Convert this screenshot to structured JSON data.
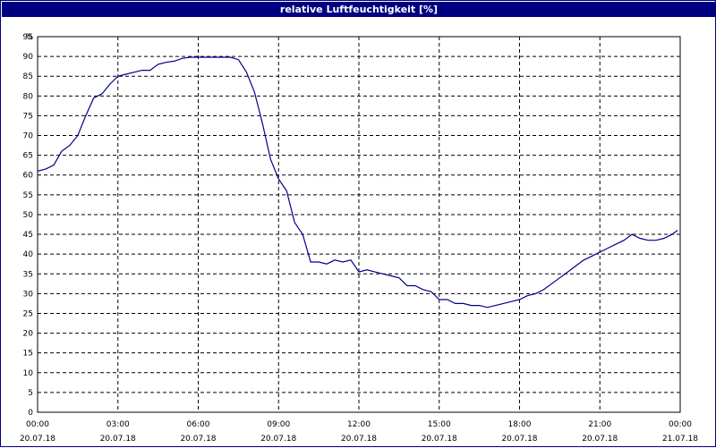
{
  "colors": {
    "title_bar": "#000080",
    "title_text": "#ffffff",
    "line": "#00008b",
    "grid": "#000000"
  },
  "chart_data": {
    "type": "line",
    "title": "relative Luftfeuchtigkeit [%]",
    "ylabel": "%",
    "xlabel": "",
    "ylim": [
      0,
      95
    ],
    "y_ticks": [
      0,
      5,
      10,
      15,
      20,
      25,
      30,
      35,
      40,
      45,
      50,
      55,
      60,
      65,
      70,
      75,
      80,
      85,
      90,
      95
    ],
    "xlim_hours": [
      0,
      24
    ],
    "x_ticks": [
      {
        "time": "00:00",
        "date": "20.07.18",
        "hour": 0
      },
      {
        "time": "03:00",
        "date": "20.07.18",
        "hour": 3
      },
      {
        "time": "06:00",
        "date": "20.07.18",
        "hour": 6
      },
      {
        "time": "09:00",
        "date": "20.07.18",
        "hour": 9
      },
      {
        "time": "12:00",
        "date": "20.07.18",
        "hour": 12
      },
      {
        "time": "15:00",
        "date": "20.07.18",
        "hour": 15
      },
      {
        "time": "18:00",
        "date": "20.07.18",
        "hour": 18
      },
      {
        "time": "21:00",
        "date": "20.07.18",
        "hour": 21
      },
      {
        "time": "00:00",
        "date": "21.07.18",
        "hour": 24
      }
    ],
    "grid": "dashed",
    "legend": "none",
    "series": [
      {
        "x": [
          0,
          0.3,
          0.6,
          0.9,
          1.2,
          1.5,
          1.8,
          2.1,
          2.4,
          2.7,
          3.0,
          3.3,
          3.6,
          3.9,
          4.2,
          4.5,
          4.8,
          5.1,
          5.4,
          5.7,
          6.0,
          6.3,
          6.6,
          6.9,
          7.2,
          7.5,
          7.8,
          8.1,
          8.4,
          8.7,
          9.0,
          9.3,
          9.6,
          9.9,
          10.2,
          10.5,
          10.8,
          11.1,
          11.4,
          11.7,
          12.0,
          12.3,
          12.6,
          12.9,
          13.2,
          13.5,
          13.8,
          14.1,
          14.4,
          14.7,
          15.0,
          15.3,
          15.6,
          15.9,
          16.2,
          16.5,
          16.8,
          17.1,
          17.4,
          17.7,
          18.0,
          18.3,
          18.6,
          18.9,
          19.2,
          19.5,
          19.8,
          20.1,
          20.4,
          20.7,
          21.0,
          21.3,
          21.6,
          21.9,
          22.2,
          22.5,
          22.8,
          23.1,
          23.4,
          23.7,
          23.9
        ],
        "y": [
          61,
          61.5,
          62.5,
          66,
          67.5,
          70,
          75,
          79.5,
          80.5,
          83,
          85,
          85.5,
          86,
          86.5,
          86.5,
          88,
          88.5,
          88.8,
          89.5,
          89.8,
          89.8,
          89.8,
          89.8,
          89.8,
          89.8,
          89.2,
          86,
          81,
          73,
          64,
          59,
          56,
          48,
          45,
          38,
          38,
          37.5,
          38.5,
          38,
          38.5,
          35.5,
          36,
          35.5,
          35,
          34.5,
          34,
          32,
          32,
          31,
          30.5,
          28.5,
          28.5,
          27.5,
          27.5,
          27,
          27,
          26.5,
          27,
          27.5,
          28,
          28.5,
          29.5,
          30,
          31,
          32.5,
          34,
          35.5,
          37,
          38.5,
          39.5,
          40.5,
          41.5,
          42.5,
          43.5,
          45,
          44,
          43.5,
          43.5,
          44,
          45,
          46
        ]
      }
    ]
  }
}
